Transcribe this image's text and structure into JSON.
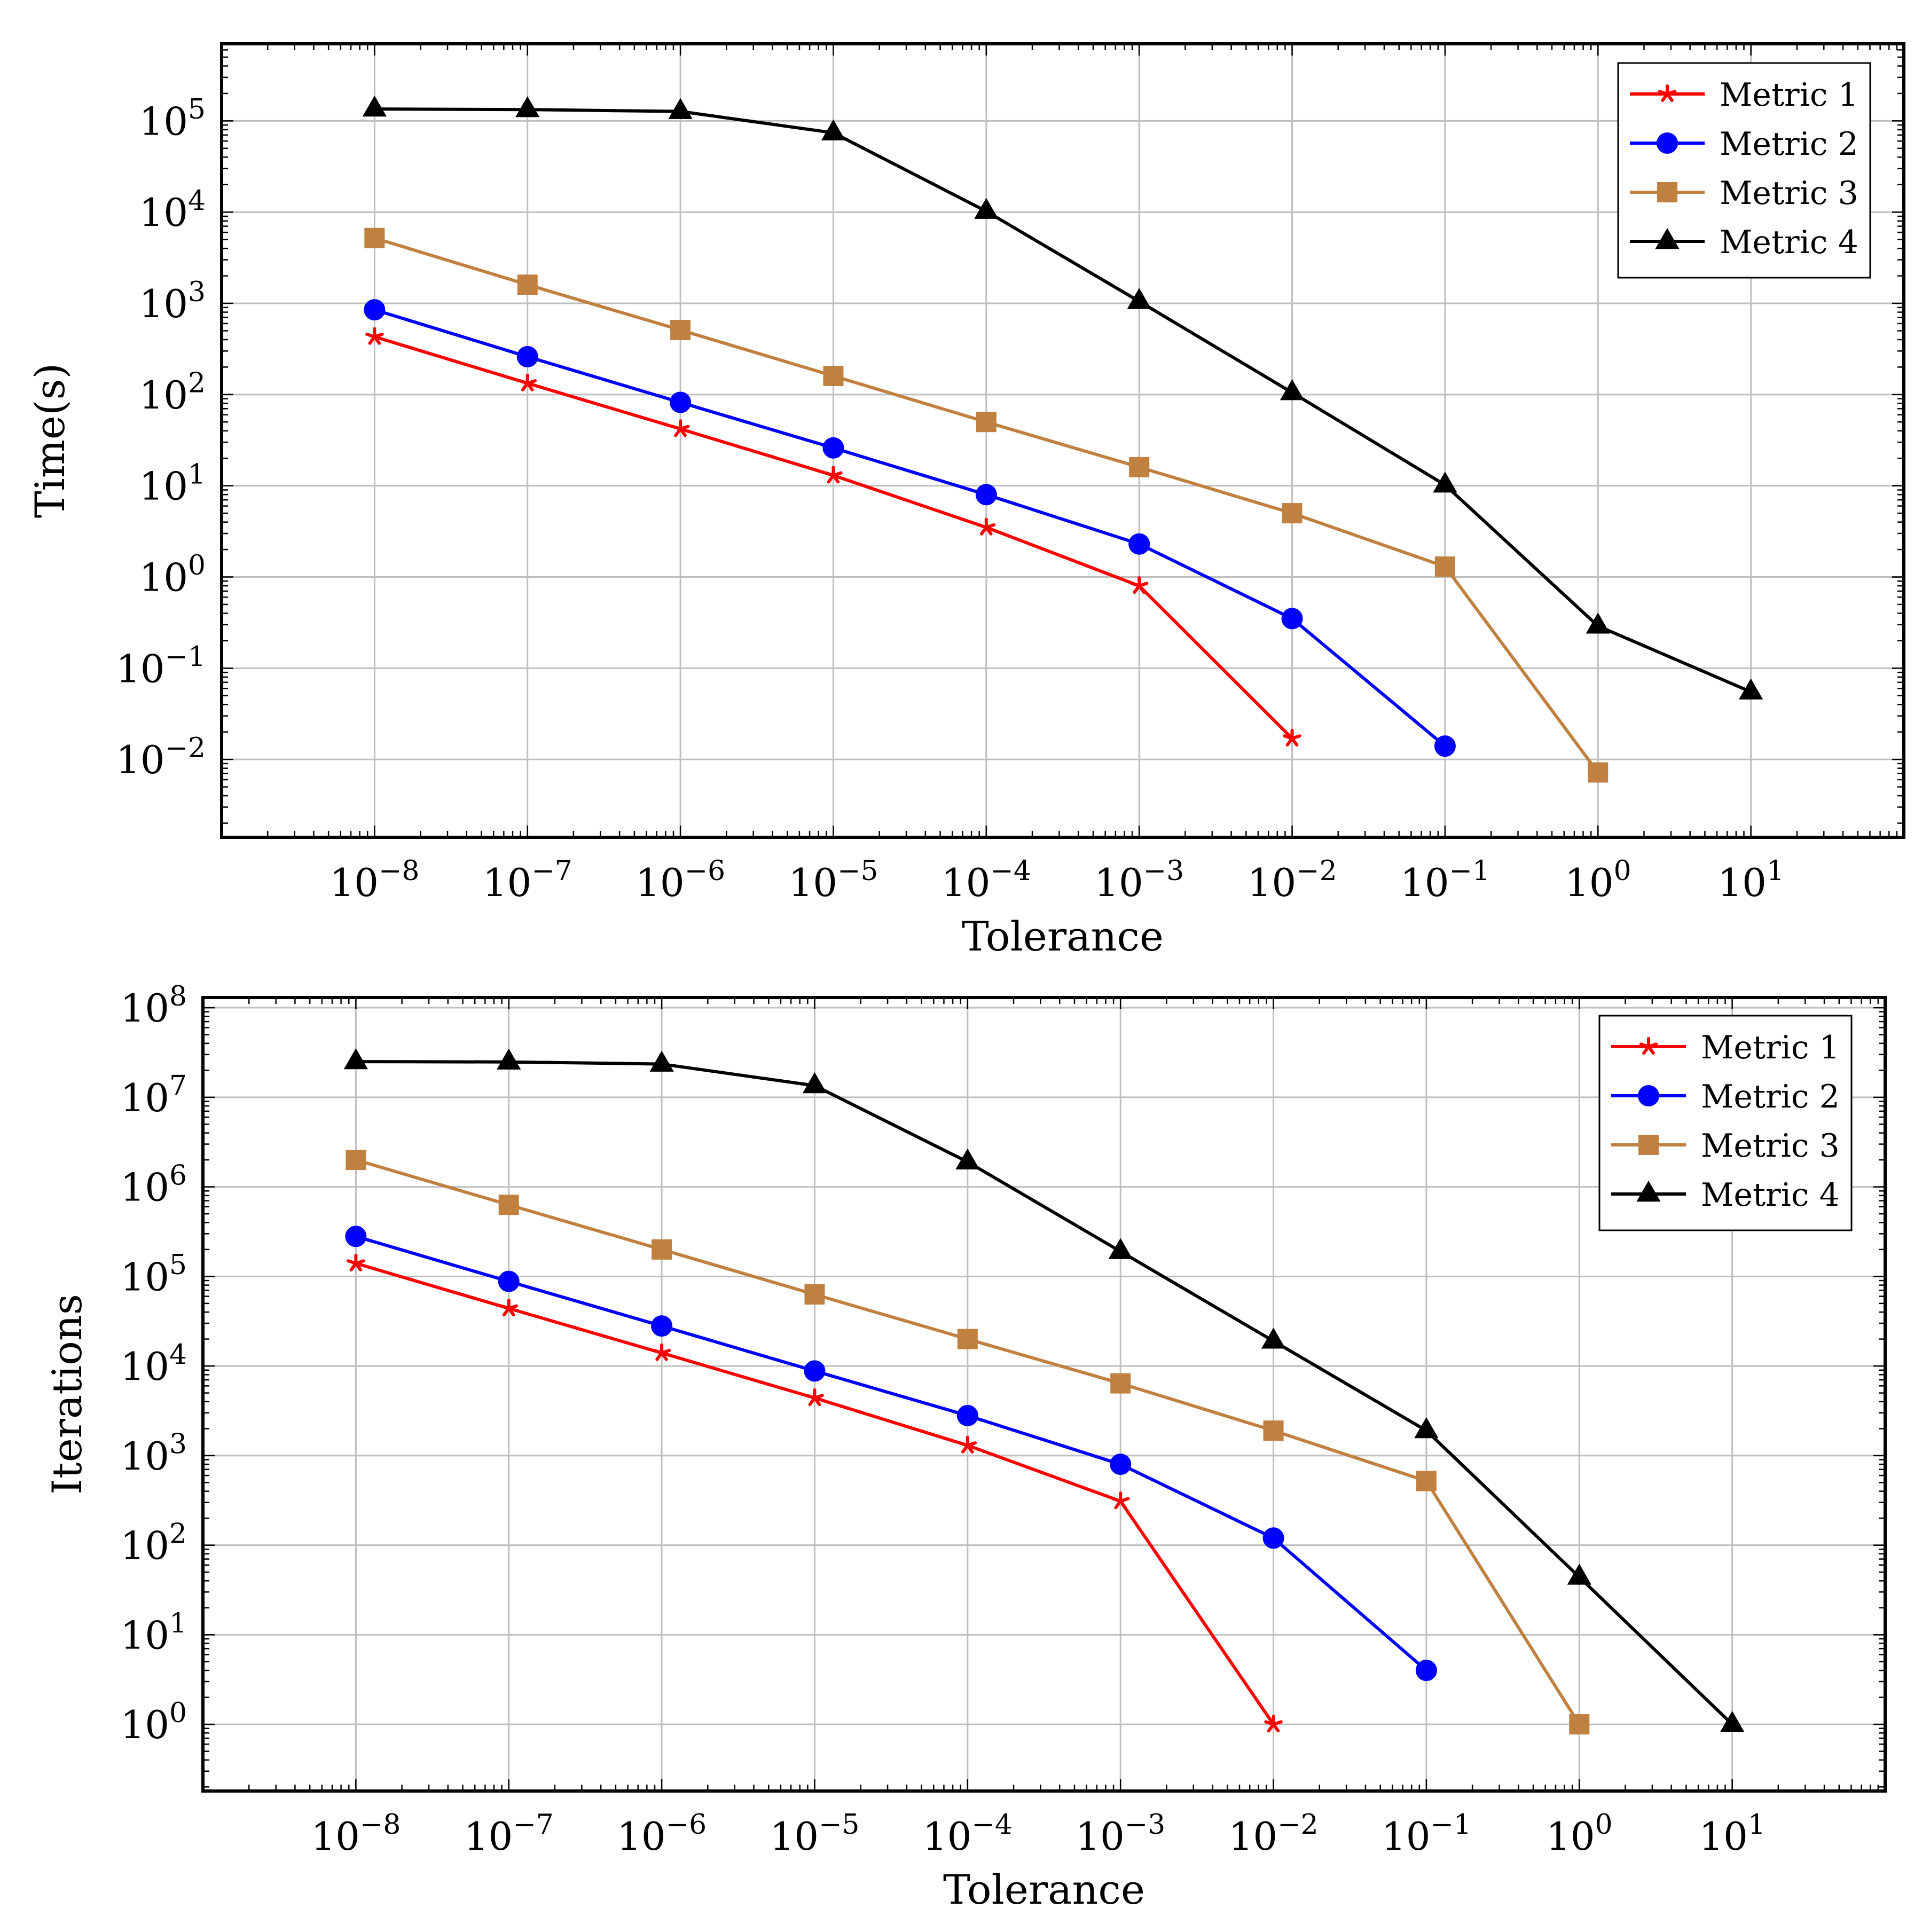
{
  "chart_data": [
    {
      "type": "line",
      "scale": "log-log",
      "title": "",
      "xlabel": "Tolerance",
      "ylabel": "Time(s)",
      "xlim": [
        1e-09,
        100
      ],
      "ylim": [
        0.0014,
        700000
      ],
      "x": [
        1e-08,
        1e-07,
        1e-06,
        1e-05,
        0.0001,
        0.001,
        0.01,
        0.1,
        1,
        10
      ],
      "x_tick_labels": [
        {
          "exp": -8
        },
        {
          "exp": -7
        },
        {
          "exp": -6
        },
        {
          "exp": -5
        },
        {
          "exp": -4
        },
        {
          "exp": -3
        },
        {
          "exp": -2
        },
        {
          "exp": -1
        },
        {
          "exp": 0
        },
        {
          "exp": 1
        }
      ],
      "y_tick_exponents": [
        -2,
        -1,
        0,
        1,
        2,
        3,
        4,
        5
      ],
      "grid": true,
      "legend_position": "top-right",
      "series": [
        {
          "name": "Metric 1",
          "color": "#ff0000",
          "marker": "star",
          "x": [
            1e-08,
            1e-07,
            1e-06,
            1e-05,
            0.0001,
            0.001,
            0.01
          ],
          "values": [
            430,
            133,
            42,
            13,
            3.5,
            0.8,
            0.017
          ]
        },
        {
          "name": "Metric 2",
          "color": "#0000ff",
          "marker": "circle",
          "x": [
            1e-08,
            1e-07,
            1e-06,
            1e-05,
            0.0001,
            0.001,
            0.01,
            0.1
          ],
          "values": [
            850,
            260,
            82,
            26,
            8,
            2.3,
            0.35,
            0.014
          ]
        },
        {
          "name": "Metric 3",
          "color": "#bf8040",
          "marker": "square",
          "x": [
            1e-08,
            1e-07,
            1e-06,
            1e-05,
            0.0001,
            0.001,
            0.01,
            0.1,
            1
          ],
          "values": [
            5200,
            1600,
            510,
            160,
            50,
            16,
            5,
            1.3,
            0.0072
          ]
        },
        {
          "name": "Metric 4",
          "color": "#000000",
          "marker": "triangle",
          "x": [
            1e-08,
            1e-07,
            1e-06,
            1e-05,
            0.0001,
            0.001,
            0.01,
            0.1,
            1,
            10
          ],
          "values": [
            135000,
            133000,
            127000,
            74000,
            10200,
            1050,
            105,
            10.2,
            0.29,
            0.055
          ]
        }
      ]
    },
    {
      "type": "line",
      "scale": "log-log",
      "title": "",
      "xlabel": "Tolerance",
      "ylabel": "Iterations",
      "xlim": [
        1e-09,
        100
      ],
      "ylim": [
        0.18,
        130000000
      ],
      "x": [
        1e-08,
        1e-07,
        1e-06,
        1e-05,
        0.0001,
        0.001,
        0.01,
        0.1,
        1,
        10
      ],
      "x_tick_labels": [
        {
          "exp": -8
        },
        {
          "exp": -7
        },
        {
          "exp": -6
        },
        {
          "exp": -5
        },
        {
          "exp": -4
        },
        {
          "exp": -3
        },
        {
          "exp": -2
        },
        {
          "exp": -1
        },
        {
          "exp": 0
        },
        {
          "exp": 1
        }
      ],
      "y_tick_exponents": [
        0,
        1,
        2,
        3,
        4,
        5,
        6,
        7,
        8
      ],
      "grid": true,
      "legend_position": "top-right",
      "series": [
        {
          "name": "Metric 1",
          "color": "#ff0000",
          "marker": "star",
          "x": [
            1e-08,
            1e-07,
            1e-06,
            1e-05,
            0.0001,
            0.001,
            0.01
          ],
          "values": [
            140000,
            44000,
            14000,
            4400,
            1300,
            310,
            1
          ]
        },
        {
          "name": "Metric 2",
          "color": "#0000ff",
          "marker": "circle",
          "x": [
            1e-08,
            1e-07,
            1e-06,
            1e-05,
            0.0001,
            0.001,
            0.01,
            0.1
          ],
          "values": [
            280000,
            88000,
            28000,
            8800,
            2800,
            800,
            120,
            4
          ]
        },
        {
          "name": "Metric 3",
          "color": "#bf8040",
          "marker": "square",
          "x": [
            1e-08,
            1e-07,
            1e-06,
            1e-05,
            0.0001,
            0.001,
            0.01,
            0.1,
            1
          ],
          "values": [
            2000000,
            630000,
            200000,
            63000,
            20000,
            6400,
            1900,
            520,
            1
          ]
        },
        {
          "name": "Metric 4",
          "color": "#000000",
          "marker": "triangle",
          "x": [
            1e-08,
            1e-07,
            1e-06,
            1e-05,
            0.0001,
            0.001,
            0.01,
            0.1,
            1,
            10
          ],
          "values": [
            25000000,
            24800000,
            23500000,
            13500000,
            1900000,
            190000,
            19000,
            1900,
            44,
            1
          ]
        }
      ]
    }
  ]
}
